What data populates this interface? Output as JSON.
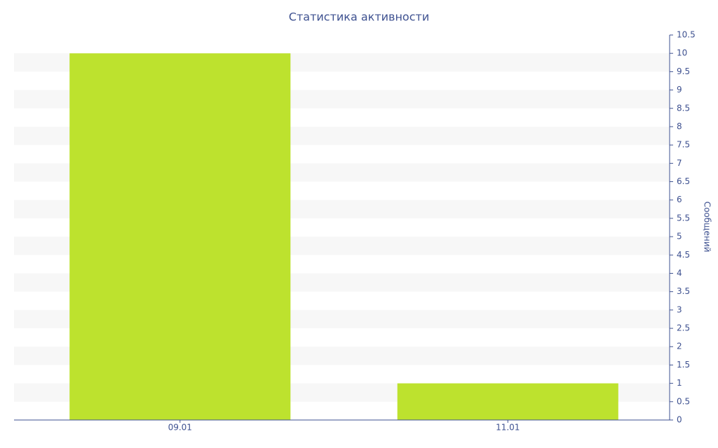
{
  "chart_data": {
    "type": "bar",
    "title": "Статистика активности",
    "y_label": "Сообщений",
    "categories": [
      "09.01",
      "11.01"
    ],
    "values": [
      10,
      1
    ],
    "color": "#bde22e",
    "ylim": [
      0,
      10.5
    ],
    "yticks": [
      0,
      0.5,
      1,
      1.5,
      2,
      2.5,
      3,
      3.5,
      4,
      4.5,
      5,
      5.5,
      6,
      6.5,
      7,
      7.5,
      8,
      8.5,
      9,
      9.5,
      10,
      10.5
    ],
    "grid": "bands",
    "y_axis_side": "right"
  }
}
